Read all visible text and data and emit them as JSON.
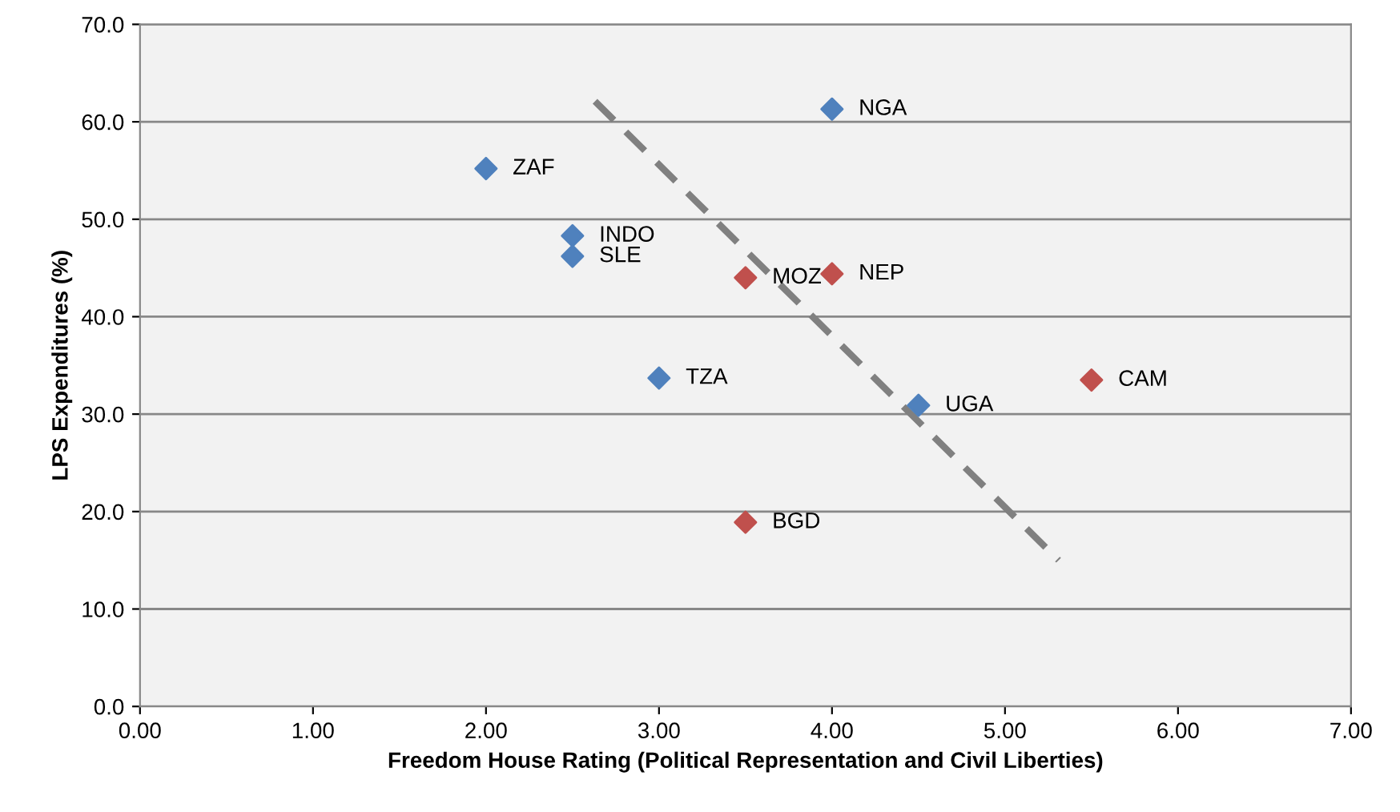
{
  "chart_data": {
    "type": "scatter",
    "xlabel": "Freedom House Rating (Political Representation and Civil Liberties)",
    "ylabel": "LPS Expenditures (%)",
    "series": [
      {
        "color": "#4f81bd",
        "x": [
          2.0,
          2.5,
          2.5,
          4.0,
          3.0,
          4.5
        ],
        "values": [
          55.2,
          48.3,
          46.2,
          61.3,
          33.7,
          30.9
        ]
      },
      {
        "color": "#c0504d",
        "x": [
          3.5,
          4.0,
          5.5,
          3.5
        ],
        "values": [
          44.0,
          44.4,
          33.5,
          18.9
        ]
      },
      {
        "type": "line",
        "color": "#808080",
        "line_style": "dashed",
        "marker": "none",
        "x": [
          2.63,
          5.31
        ],
        "values": [
          62.1,
          15.0
        ]
      }
    ],
    "marker": "diamond",
    "annotations": [
      {
        "text": "ZAF",
        "x": 2.0,
        "y": 55.2
      },
      {
        "text": "INDO",
        "x": 2.5,
        "y": 48.3
      },
      {
        "text": "SLE",
        "x": 2.5,
        "y": 46.2
      },
      {
        "text": "NGA",
        "x": 4.0,
        "y": 61.3
      },
      {
        "text": "TZA",
        "x": 3.0,
        "y": 33.7
      },
      {
        "text": "UGA",
        "x": 4.5,
        "y": 30.9
      },
      {
        "text": "MOZ",
        "x": 3.5,
        "y": 44.0
      },
      {
        "text": "NEP",
        "x": 4.0,
        "y": 44.4
      },
      {
        "text": "CAM",
        "x": 5.5,
        "y": 33.5
      },
      {
        "text": "BGD",
        "x": 3.5,
        "y": 18.9
      }
    ],
    "xlim": [
      0,
      7
    ],
    "xticks": [
      {
        "value": 0,
        "label": "0.00"
      },
      {
        "value": 1,
        "label": "1.00"
      },
      {
        "value": 2,
        "label": "2.00"
      },
      {
        "value": 3,
        "label": "3.00"
      },
      {
        "value": 4,
        "label": "4.00"
      },
      {
        "value": 5,
        "label": "5.00"
      },
      {
        "value": 6,
        "label": "6.00"
      },
      {
        "value": 7,
        "label": "7.00"
      }
    ],
    "ylim": [
      0,
      70
    ],
    "yticks": [
      {
        "value": 0,
        "label": "0.0"
      },
      {
        "value": 10,
        "label": "10.0"
      },
      {
        "value": 20,
        "label": "20.0"
      },
      {
        "value": 30,
        "label": "30.0"
      },
      {
        "value": 40,
        "label": "40.0"
      },
      {
        "value": 50,
        "label": "50.0"
      },
      {
        "value": 60,
        "label": "60.0"
      },
      {
        "value": 70,
        "label": "70.0"
      }
    ],
    "grid": "y"
  }
}
